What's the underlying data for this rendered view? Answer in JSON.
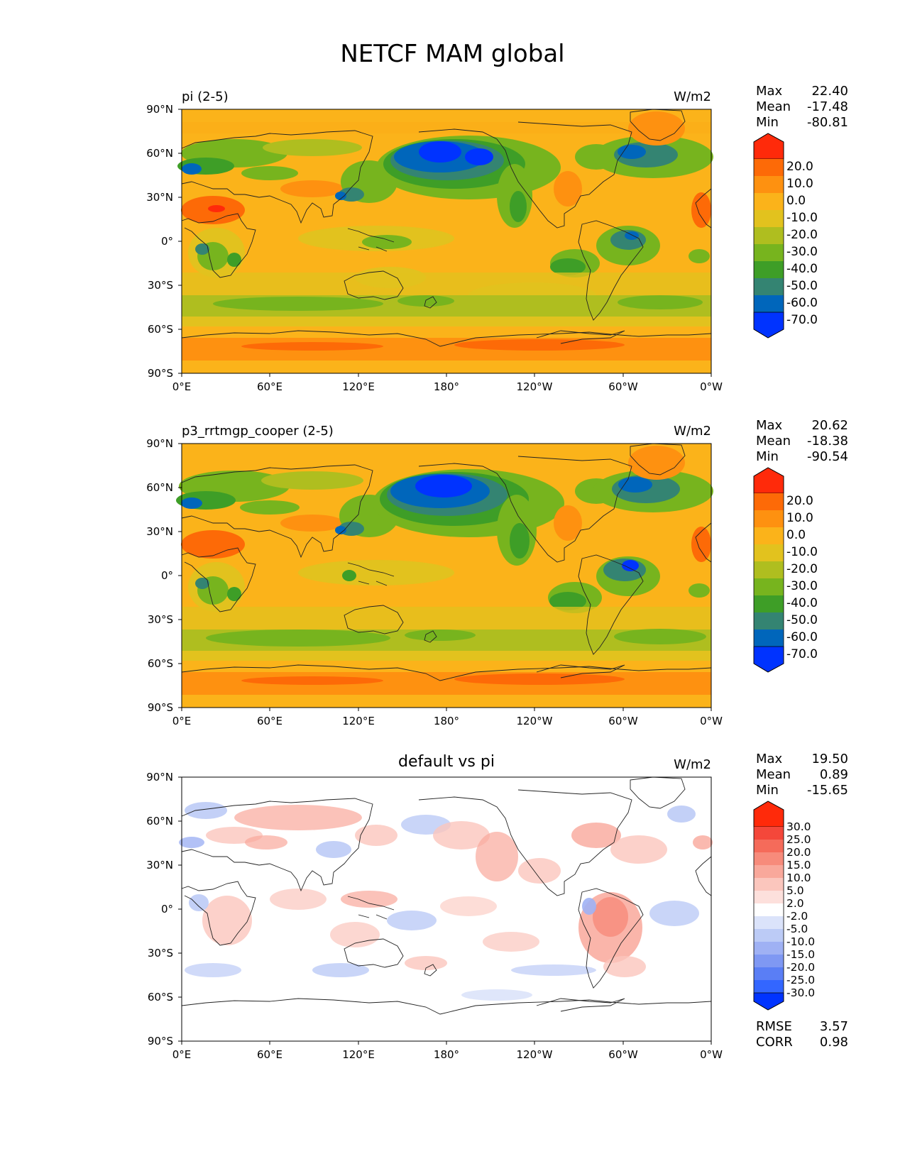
{
  "figure": {
    "title": "NETCF MAM global"
  },
  "axes": {
    "lat_ticks": [
      "90°N",
      "60°N",
      "30°N",
      "0°",
      "30°S",
      "60°S",
      "90°S"
    ],
    "lon_ticks": [
      "0°E",
      "60°E",
      "120°E",
      "180°",
      "120°W",
      "60°W",
      "0°W"
    ]
  },
  "panels": [
    {
      "title": "pi (2-5)",
      "units": "W/m2",
      "title_position": "left",
      "stats": {
        "max_label": "Max",
        "max": "22.40",
        "mean_label": "Mean",
        "mean": "-17.48",
        "min_label": "Min",
        "min": "-80.81"
      },
      "colorbar": {
        "labels": [
          "20.0",
          "10.0",
          "0.0",
          "-10.0",
          "-20.0",
          "-30.0",
          "-40.0",
          "-50.0",
          "-60.0",
          "-70.0"
        ]
      }
    },
    {
      "title": "p3_rrtmgp_cooper (2-5)",
      "units": "W/m2",
      "title_position": "left",
      "stats": {
        "max_label": "Max",
        "max": "20.62",
        "mean_label": "Mean",
        "mean": "-18.38",
        "min_label": "Min",
        "min": "-90.54"
      },
      "colorbar": {
        "labels": [
          "20.0",
          "10.0",
          "0.0",
          "-10.0",
          "-20.0",
          "-30.0",
          "-40.0",
          "-50.0",
          "-60.0",
          "-70.0"
        ]
      }
    },
    {
      "title": "default vs pi",
      "units": "W/m2",
      "title_position": "center",
      "stats": {
        "max_label": "Max",
        "max": "19.50",
        "mean_label": "Mean",
        "mean": "0.89",
        "min_label": "Min",
        "min": "-15.65"
      },
      "colorbar": {
        "labels": [
          "30.0",
          "25.0",
          "20.0",
          "15.0",
          "10.0",
          "5.0",
          "2.0",
          "-2.0",
          "-5.0",
          "-10.0",
          "-15.0",
          "-20.0",
          "-25.0",
          "-30.0"
        ]
      },
      "metrics": {
        "rmse_label": "RMSE",
        "rmse": "3.57",
        "corr_label": "CORR",
        "corr": "0.98"
      }
    }
  ],
  "colors": {
    "field_scale": [
      "#0033ff",
      "#0066bb",
      "#348472",
      "#3e9e27",
      "#77b41e",
      "#afbe1f",
      "#e2c21e",
      "#fbb31a",
      "#fe9110",
      "#fd6a07",
      "#ff2a0a"
    ],
    "diff_scale": [
      "#0033ff",
      "#3366ff",
      "#5a7ef5",
      "#7f98f3",
      "#9fb1f4",
      "#bccbf6",
      "#dbe3fa",
      "#ffffff",
      "#fde0dc",
      "#fbc6bd",
      "#f9a89b",
      "#f78b7b",
      "#f56b5a",
      "#f4473a",
      "#ff2a0a"
    ]
  }
}
